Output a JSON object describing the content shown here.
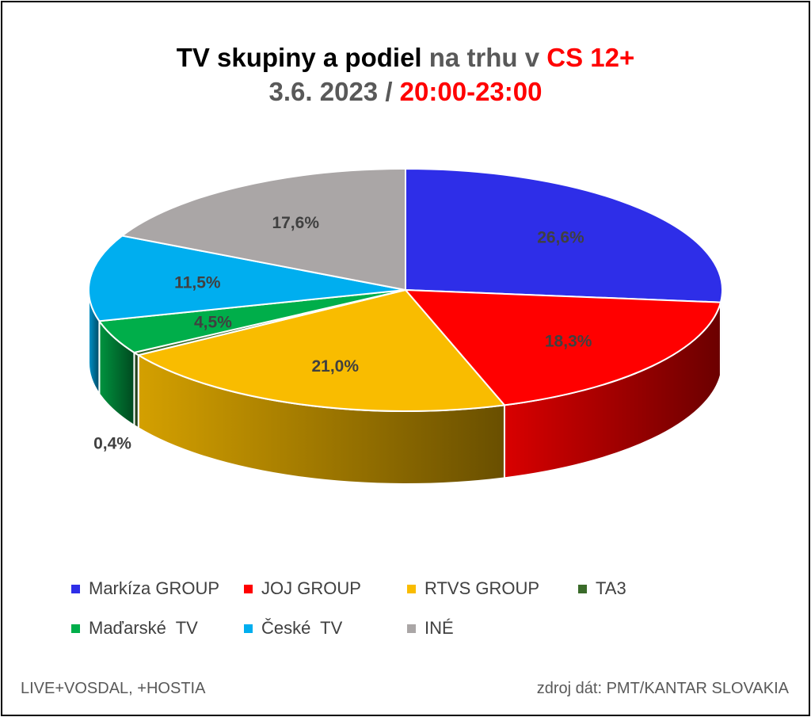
{
  "title": {
    "part1": "TV skupiny a podiel",
    "part2": "na trhu v",
    "part3": "CS 12+"
  },
  "subtitle": {
    "part1": "3.6. 2023 /",
    "part2": "20:00-23:00"
  },
  "chart_data": {
    "type": "pie",
    "style": "3d-pie",
    "categories": [
      "Markíza GROUP",
      "JOJ GROUP",
      "RTVS GROUP",
      "TA3",
      "Maďarské  TV",
      "České  TV",
      "INÉ"
    ],
    "values": [
      26.6,
      18.3,
      21.0,
      0.4,
      4.5,
      11.5,
      17.6
    ],
    "labels": [
      "26,6%",
      "18,3%",
      "21,0%",
      "0,4%",
      "4,5%",
      "11,5%",
      "17,6%"
    ],
    "colors": [
      "#2e2ee8",
      "#ff0000",
      "#f9bc00",
      "#3a6b2a",
      "#00ae4a",
      "#00aeef",
      "#aaa6a6"
    ],
    "legend_position": "bottom"
  },
  "footer": {
    "left": "LIVE+VOSDAL, +HOSTIA",
    "right": "zdroj dát: PMT/KANTAR SLOVAKIA"
  }
}
